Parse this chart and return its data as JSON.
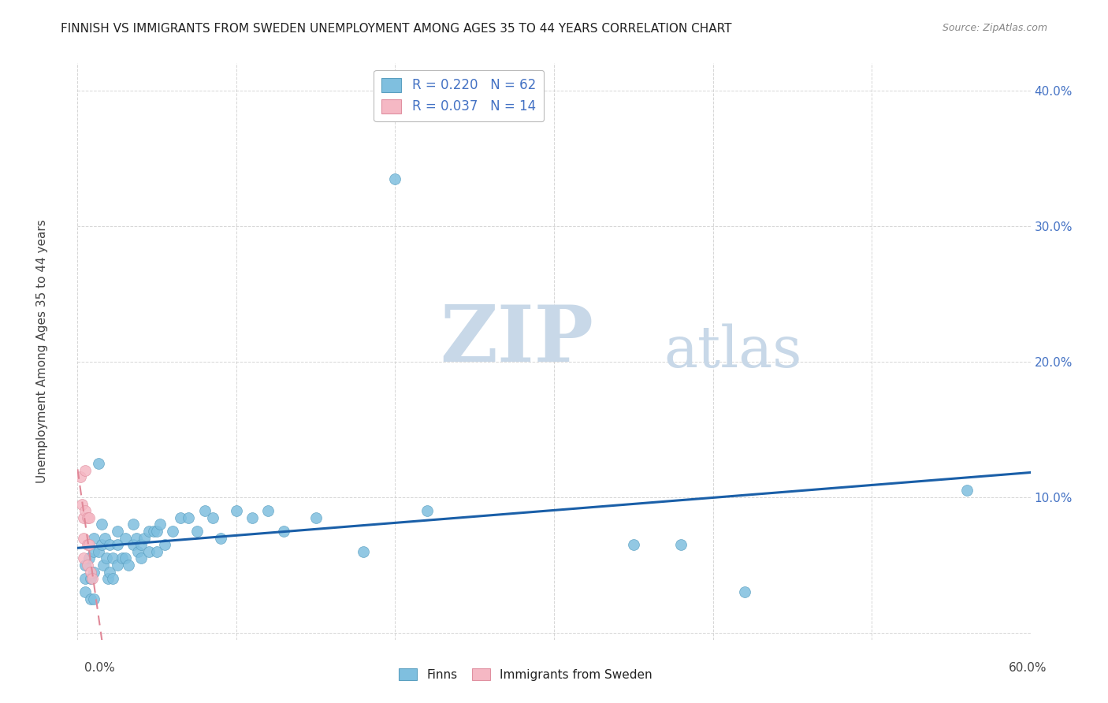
{
  "title": "FINNISH VS IMMIGRANTS FROM SWEDEN UNEMPLOYMENT AMONG AGES 35 TO 44 YEARS CORRELATION CHART",
  "source": "Source: ZipAtlas.com",
  "ylabel": "Unemployment Among Ages 35 to 44 years",
  "xlim": [
    0.0,
    0.6
  ],
  "ylim": [
    -0.005,
    0.42
  ],
  "legend_r_finns": "R = 0.220",
  "legend_n_finns": "N = 62",
  "legend_r_immigrants": "R = 0.037",
  "legend_n_immigrants": "N = 14",
  "finns_color": "#7fbfdf",
  "finns_edge_color": "#5a9fc0",
  "immigrants_color": "#f5b8c4",
  "immigrants_edge_color": "#e090a0",
  "finns_line_color": "#1a5fa8",
  "immigrants_line_color": "#e08898",
  "watermark_zip_color": "#c8d8e8",
  "watermark_atlas_color": "#c8d8e8",
  "finns_x": [
    0.005,
    0.005,
    0.005,
    0.007,
    0.008,
    0.008,
    0.01,
    0.01,
    0.01,
    0.01,
    0.013,
    0.013,
    0.015,
    0.015,
    0.016,
    0.017,
    0.018,
    0.019,
    0.02,
    0.02,
    0.022,
    0.022,
    0.025,
    0.025,
    0.025,
    0.028,
    0.03,
    0.03,
    0.032,
    0.035,
    0.035,
    0.037,
    0.038,
    0.04,
    0.04,
    0.042,
    0.045,
    0.045,
    0.048,
    0.05,
    0.05,
    0.052,
    0.055,
    0.06,
    0.065,
    0.07,
    0.075,
    0.08,
    0.085,
    0.09,
    0.1,
    0.11,
    0.12,
    0.13,
    0.15,
    0.18,
    0.2,
    0.22,
    0.35,
    0.38,
    0.42,
    0.56
  ],
  "finns_y": [
    0.05,
    0.04,
    0.03,
    0.055,
    0.04,
    0.025,
    0.07,
    0.06,
    0.045,
    0.025,
    0.125,
    0.06,
    0.08,
    0.065,
    0.05,
    0.07,
    0.055,
    0.04,
    0.065,
    0.045,
    0.055,
    0.04,
    0.075,
    0.065,
    0.05,
    0.055,
    0.07,
    0.055,
    0.05,
    0.08,
    0.065,
    0.07,
    0.06,
    0.065,
    0.055,
    0.07,
    0.075,
    0.06,
    0.075,
    0.075,
    0.06,
    0.08,
    0.065,
    0.075,
    0.085,
    0.085,
    0.075,
    0.09,
    0.085,
    0.07,
    0.09,
    0.085,
    0.09,
    0.075,
    0.085,
    0.06,
    0.335,
    0.09,
    0.065,
    0.065,
    0.03,
    0.105
  ],
  "immigrants_x": [
    0.002,
    0.003,
    0.004,
    0.004,
    0.004,
    0.005,
    0.005,
    0.006,
    0.006,
    0.006,
    0.007,
    0.007,
    0.008,
    0.009
  ],
  "immigrants_y": [
    0.115,
    0.095,
    0.085,
    0.07,
    0.055,
    0.12,
    0.09,
    0.085,
    0.065,
    0.05,
    0.085,
    0.065,
    0.045,
    0.04
  ]
}
